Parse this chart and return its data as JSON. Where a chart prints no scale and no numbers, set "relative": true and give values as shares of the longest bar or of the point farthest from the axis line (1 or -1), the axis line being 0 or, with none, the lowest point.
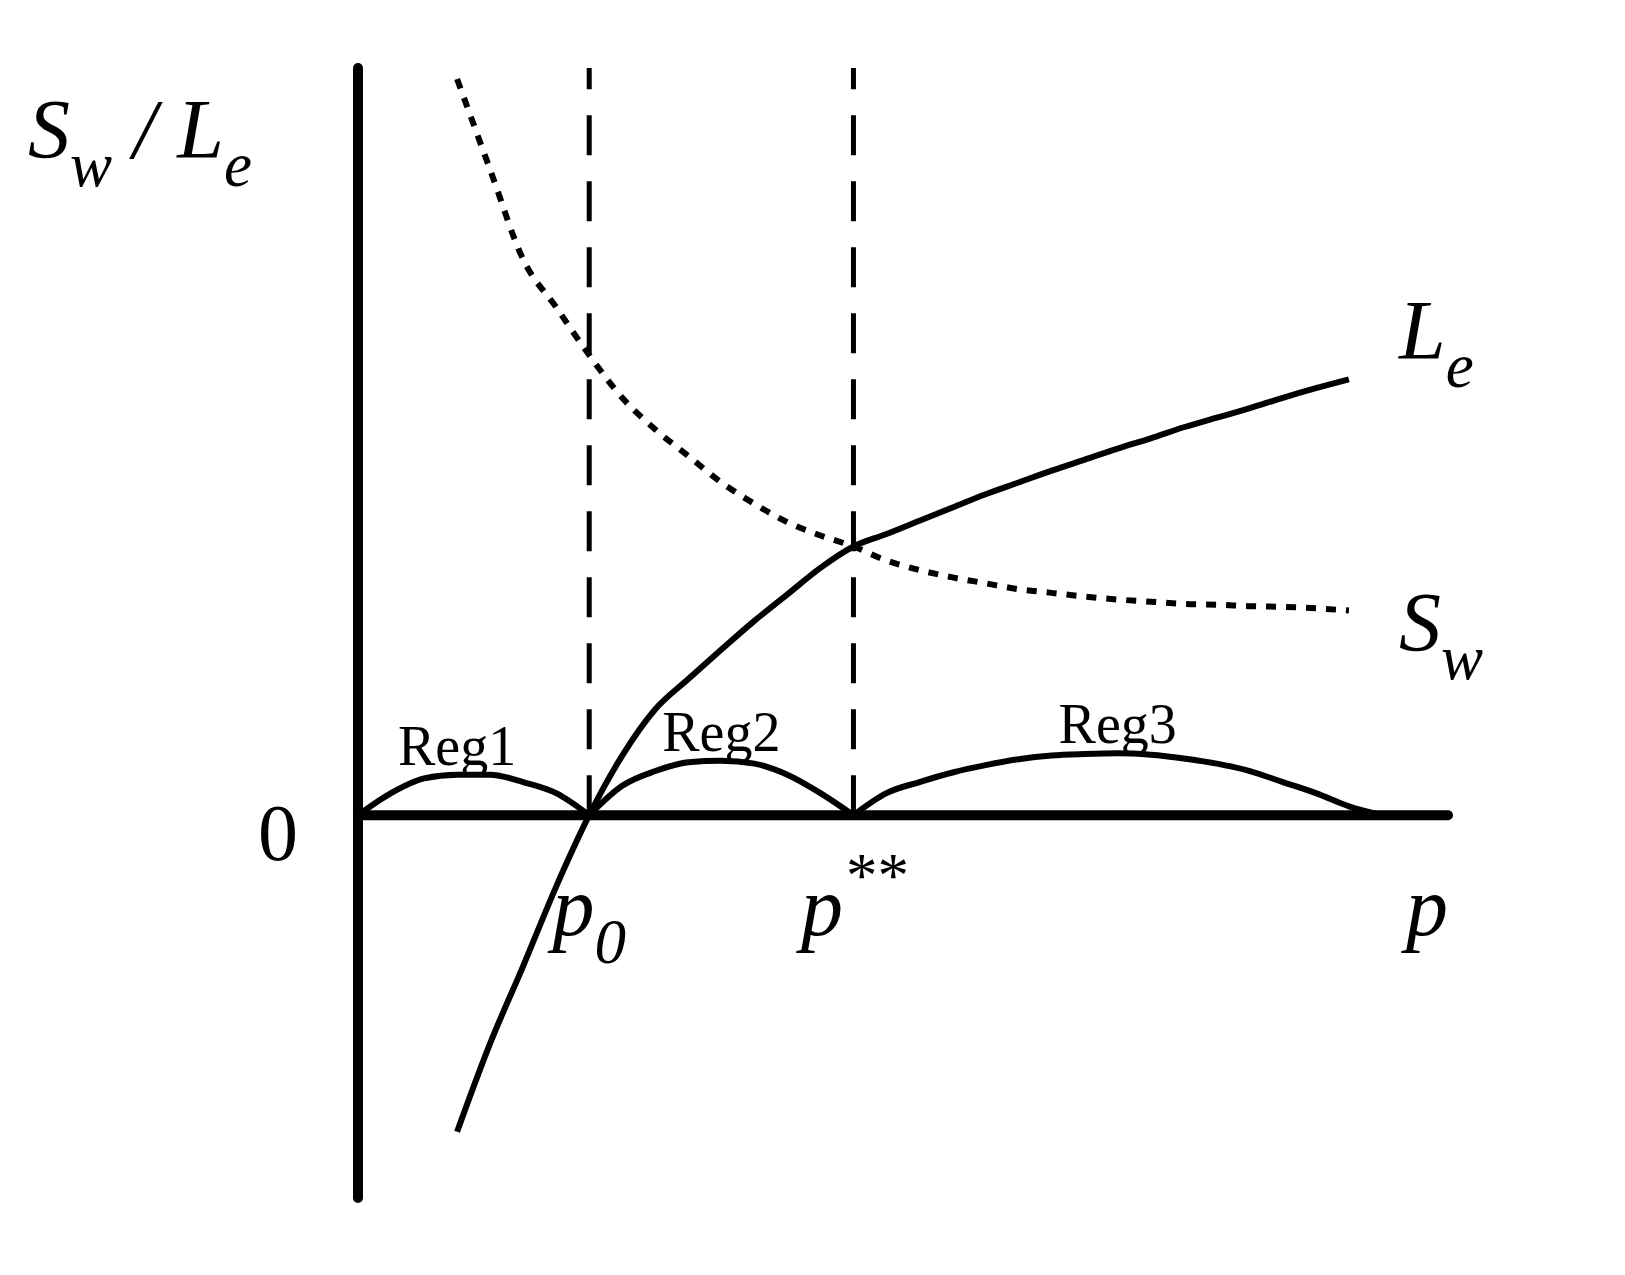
{
  "chart_data": {
    "type": "line",
    "relative": true,
    "ylabel": "S$_{w}$ / L$_{e}$",
    "xlabel": "p",
    "categories": [
      null,
      null,
      null,
      null,
      null,
      null,
      null,
      "p$_{0}$",
      null,
      null,
      null,
      null,
      null,
      null,
      null,
      "p$^{**}$",
      null,
      null,
      null,
      null,
      null,
      null,
      null,
      null,
      null,
      null,
      null,
      null,
      null,
      null,
      null,
      null,
      null,
      null
    ],
    "annotations": [
      "0"
    ],
    "series": [
      {
        "name": "L$_{e}$",
        "color": "#000000",
        "line_style": "solid",
        "values": [
          null,
          null,
          null,
          -0.43,
          -0.31,
          -0.205,
          -0.097,
          0,
          0.081,
          0.144,
          0.185,
          0.225,
          0.264,
          0.3,
          0.336,
          0.365,
          0.382,
          0.4,
          0.418,
          0.436,
          0.452,
          0.468,
          0.483,
          0.498,
          0.512,
          0.527,
          0.54,
          0.553,
          0.567,
          0.58,
          0.592,
          null,
          null,
          null
        ]
      },
      {
        "name": "S$_{w}$",
        "color": "#000000",
        "line_style": "dotted",
        "values": [
          null,
          null,
          null,
          1,
          0.877,
          0.755,
          0.69,
          0.625,
          0.567,
          0.524,
          0.488,
          0.452,
          0.423,
          0.398,
          0.38,
          0.365,
          0.346,
          0.333,
          0.323,
          0.315,
          0.307,
          0.302,
          0.297,
          0.293,
          0.29,
          0.287,
          0.286,
          0.284,
          0.283,
          0.281,
          0.278,
          null,
          null,
          null
        ]
      },
      {
        "name": "Reg1",
        "color": "#000000",
        "line_style": "solid",
        "values": [
          0,
          0.03,
          0.05,
          0.055,
          0.055,
          0.045,
          0.03,
          0,
          null,
          null,
          null,
          null,
          null,
          null,
          null,
          null,
          null,
          null,
          null,
          null,
          null,
          null,
          null,
          null,
          null,
          null,
          null,
          null,
          null,
          null,
          null,
          null,
          null,
          null
        ]
      },
      {
        "name": "Reg2",
        "color": "#000000",
        "line_style": "solid",
        "values": [
          null,
          null,
          null,
          null,
          null,
          null,
          null,
          0,
          0.04,
          0.06,
          0.072,
          0.074,
          0.07,
          0.055,
          0.03,
          0,
          null,
          null,
          null,
          null,
          null,
          null,
          null,
          null,
          null,
          null,
          null,
          null,
          null,
          null,
          null,
          null,
          null,
          null
        ]
      },
      {
        "name": "Reg3",
        "color": "#000000",
        "line_style": "solid",
        "values": [
          null,
          null,
          null,
          null,
          null,
          null,
          null,
          null,
          null,
          null,
          null,
          null,
          null,
          null,
          null,
          0,
          0.03,
          0.045,
          0.058,
          0.068,
          0.076,
          0.081,
          0.083,
          0.084,
          0.082,
          0.077,
          0.07,
          0.06,
          0.045,
          0.03,
          0.012,
          0,
          null,
          null
        ]
      }
    ],
    "ref_lines": [
      {
        "axis": "x",
        "value": "p$_{0}$",
        "color": "#000000",
        "line_style": "dashed"
      },
      {
        "axis": "x",
        "value": "p$^{**}$",
        "color": "#000000",
        "line_style": "dashed"
      }
    ]
  }
}
